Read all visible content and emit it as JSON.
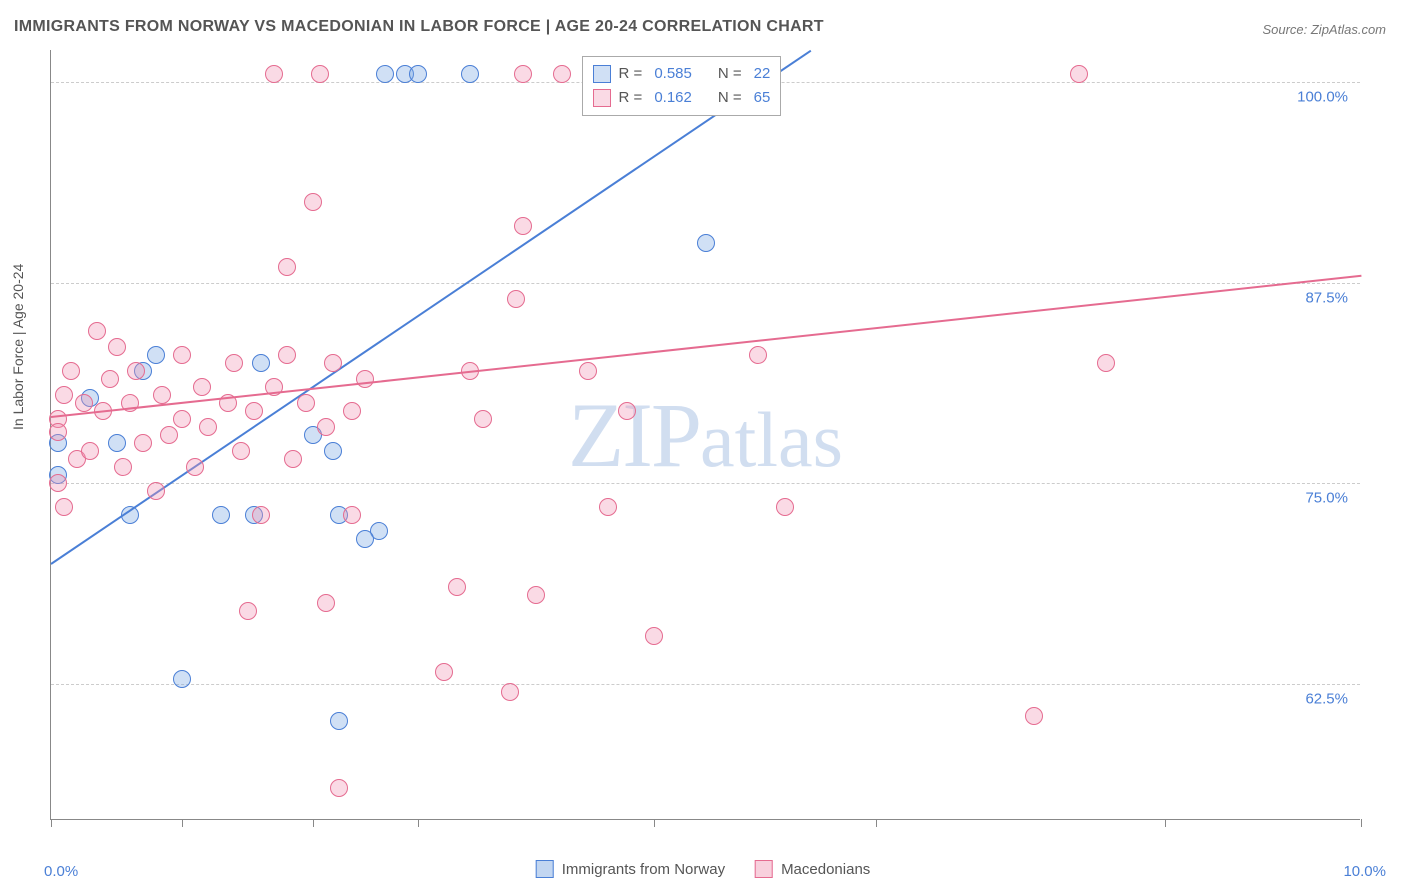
{
  "title": "IMMIGRANTS FROM NORWAY VS MACEDONIAN IN LABOR FORCE | AGE 20-24 CORRELATION CHART",
  "source": "Source: ZipAtlas.com",
  "y_axis_title": "In Labor Force | Age 20-24",
  "watermark": "ZIPatlas",
  "chart": {
    "type": "scatter",
    "background_color": "#ffffff",
    "grid_color": "#cccccc",
    "axis_color": "#888888",
    "text_color": "#555555",
    "value_color": "#4a7fd6",
    "xlim": [
      0.0,
      10.0
    ],
    "ylim": [
      54.0,
      102.0
    ],
    "x_ticks": [
      0.0,
      1.0,
      2.0,
      2.8,
      4.6,
      6.3,
      8.5,
      10.0
    ],
    "y_grid": [
      62.5,
      75.0,
      87.5,
      100.0
    ],
    "x_tick_labels": {
      "min": "0.0%",
      "max": "10.0%"
    },
    "y_tick_labels": [
      "62.5%",
      "75.0%",
      "87.5%",
      "100.0%"
    ],
    "point_radius": 9,
    "point_fill_opacity": 0.35,
    "series": [
      {
        "key": "norway",
        "label": "Immigrants from Norway",
        "color": "#4a7fd6",
        "fill": "rgba(120,165,225,0.35)",
        "r": "0.585",
        "n": "22",
        "trend": {
          "x1": 0.0,
          "y1": 70.0,
          "x2": 5.8,
          "y2": 102.0
        },
        "points": [
          [
            0.05,
            75.5
          ],
          [
            0.6,
            73.0
          ],
          [
            0.05,
            77.5
          ],
          [
            0.8,
            83.0
          ],
          [
            1.0,
            62.8
          ],
          [
            2.2,
            60.2
          ],
          [
            0.7,
            82.0
          ],
          [
            1.3,
            73.0
          ],
          [
            2.0,
            78.0
          ],
          [
            1.6,
            82.5
          ],
          [
            2.2,
            73.0
          ],
          [
            2.5,
            72.0
          ],
          [
            2.4,
            71.5
          ],
          [
            2.55,
            100.5
          ],
          [
            2.7,
            100.5
          ],
          [
            2.8,
            100.5
          ],
          [
            3.2,
            100.5
          ],
          [
            1.55,
            73.0
          ],
          [
            5.0,
            90.0
          ],
          [
            0.3,
            80.3
          ],
          [
            0.5,
            77.5
          ],
          [
            2.15,
            77.0
          ]
        ]
      },
      {
        "key": "macedonians",
        "label": "Macedonians",
        "color": "#e56b90",
        "fill": "rgba(240,150,180,0.35)",
        "r": "0.162",
        "n": "65",
        "trend": {
          "x1": 0.0,
          "y1": 79.2,
          "x2": 10.0,
          "y2": 88.0
        },
        "points": [
          [
            0.05,
            79.0
          ],
          [
            0.05,
            78.2
          ],
          [
            0.05,
            75.0
          ],
          [
            0.1,
            73.5
          ],
          [
            0.15,
            82.0
          ],
          [
            0.2,
            76.5
          ],
          [
            0.25,
            80.0
          ],
          [
            0.3,
            77.0
          ],
          [
            0.35,
            84.5
          ],
          [
            0.4,
            79.5
          ],
          [
            0.45,
            81.5
          ],
          [
            0.5,
            83.5
          ],
          [
            0.55,
            76.0
          ],
          [
            0.6,
            80.0
          ],
          [
            0.65,
            82.0
          ],
          [
            0.7,
            77.5
          ],
          [
            0.85,
            80.5
          ],
          [
            0.8,
            74.5
          ],
          [
            0.9,
            78.0
          ],
          [
            1.0,
            83.0
          ],
          [
            1.0,
            79.0
          ],
          [
            1.1,
            76.0
          ],
          [
            1.15,
            81.0
          ],
          [
            1.2,
            78.5
          ],
          [
            1.35,
            80.0
          ],
          [
            1.4,
            82.5
          ],
          [
            1.45,
            77.0
          ],
          [
            1.5,
            67.0
          ],
          [
            1.55,
            79.5
          ],
          [
            1.6,
            73.0
          ],
          [
            1.7,
            81.0
          ],
          [
            1.7,
            100.5
          ],
          [
            1.8,
            83.0
          ],
          [
            1.8,
            88.5
          ],
          [
            1.85,
            76.5
          ],
          [
            1.95,
            80.0
          ],
          [
            2.0,
            92.5
          ],
          [
            2.05,
            100.5
          ],
          [
            2.1,
            78.5
          ],
          [
            2.1,
            67.5
          ],
          [
            2.15,
            82.5
          ],
          [
            2.2,
            56.0
          ],
          [
            2.3,
            73.0
          ],
          [
            2.3,
            79.5
          ],
          [
            2.4,
            81.5
          ],
          [
            3.0,
            63.2
          ],
          [
            3.1,
            68.5
          ],
          [
            3.2,
            82.0
          ],
          [
            3.3,
            79.0
          ],
          [
            3.5,
            62.0
          ],
          [
            3.55,
            86.5
          ],
          [
            3.6,
            91.0
          ],
          [
            3.6,
            100.5
          ],
          [
            3.7,
            68.0
          ],
          [
            3.9,
            100.5
          ],
          [
            4.1,
            82.0
          ],
          [
            4.25,
            73.5
          ],
          [
            4.4,
            79.5
          ],
          [
            4.6,
            65.5
          ],
          [
            5.4,
            83.0
          ],
          [
            5.6,
            73.5
          ],
          [
            7.5,
            60.5
          ],
          [
            7.85,
            100.5
          ],
          [
            8.05,
            82.5
          ],
          [
            0.1,
            80.5
          ]
        ]
      }
    ]
  },
  "legend_bottom": [
    {
      "label": "Immigrants from Norway",
      "color": "#4a7fd6",
      "fill": "rgba(120,165,225,0.45)"
    },
    {
      "label": "Macedonians",
      "color": "#e56b90",
      "fill": "rgba(240,150,180,0.45)"
    }
  ]
}
